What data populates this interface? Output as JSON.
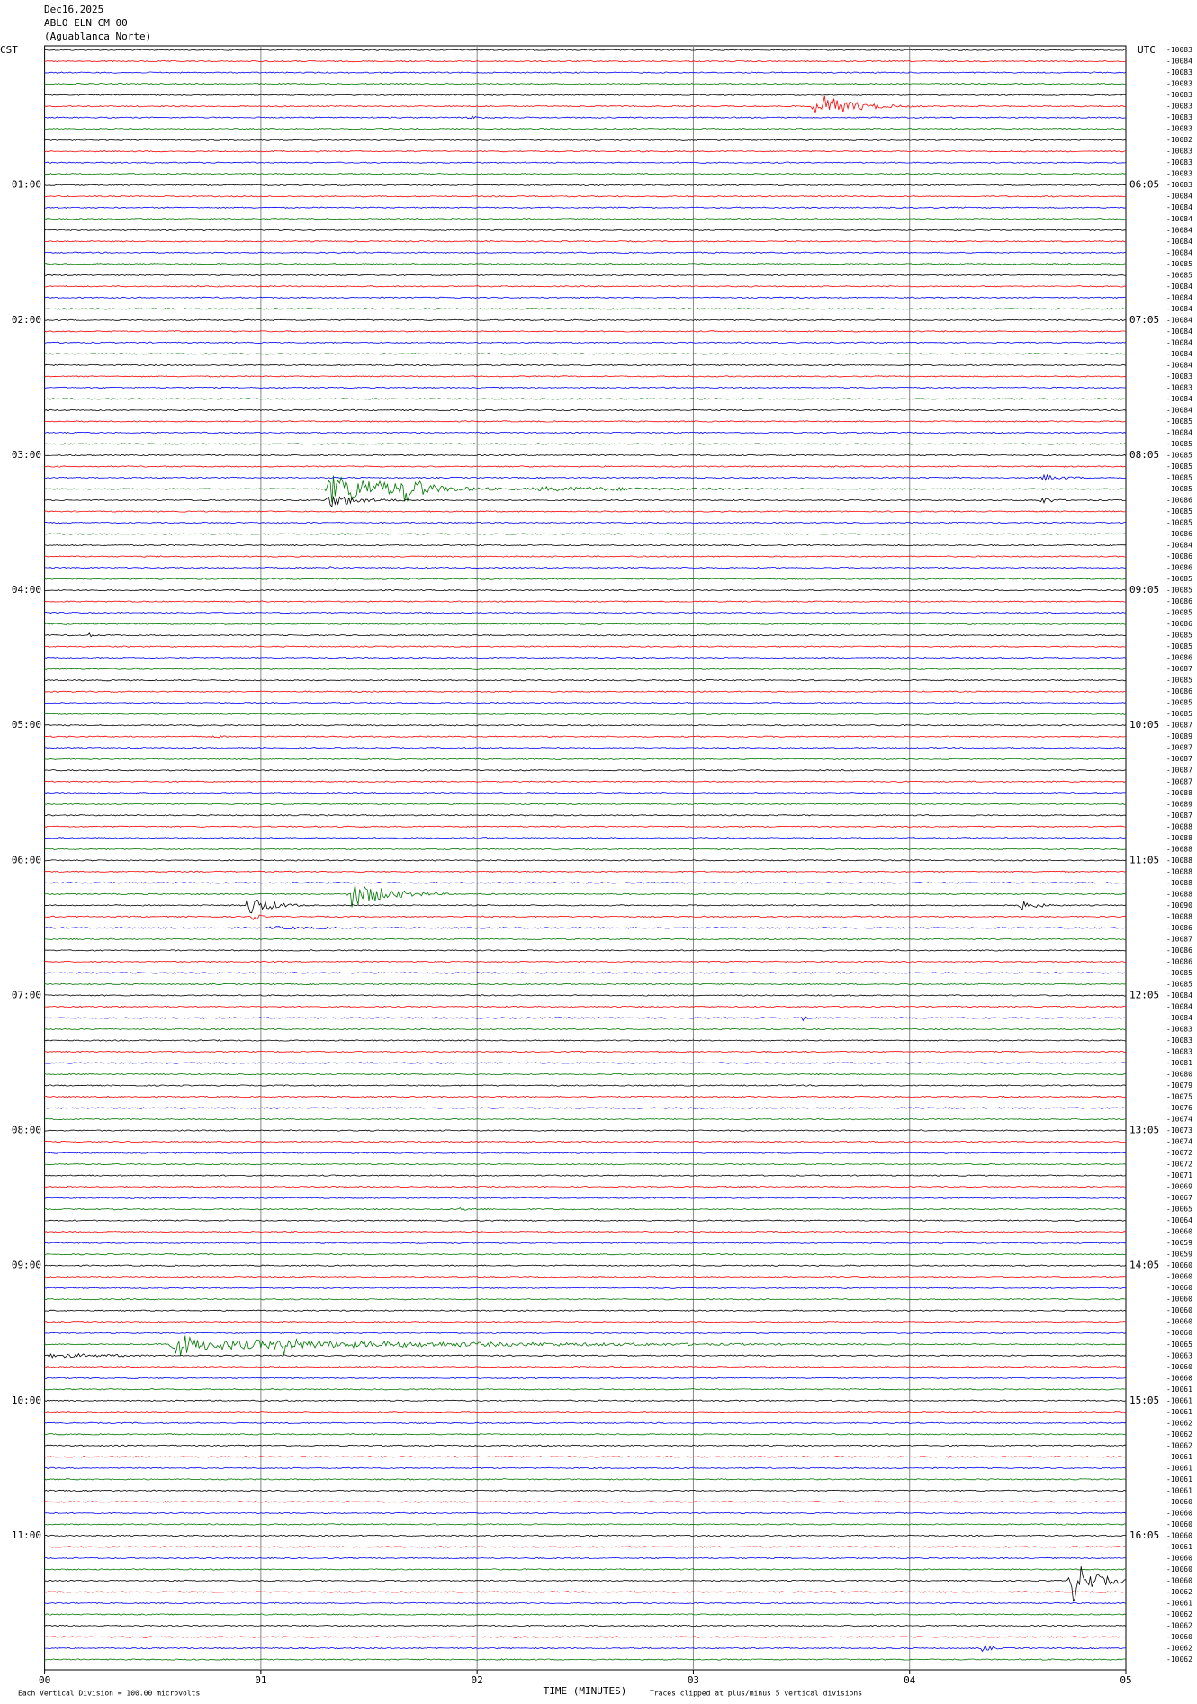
{
  "header": {
    "date": "Dec16,2025",
    "station": "ABLO ELN CM 00",
    "location": "(Aguablanca Norte)",
    "left_zone": "CST",
    "right_zone": "UTC"
  },
  "left_hour_labels": [
    "01:00",
    "02:00",
    "03:00",
    "04:00",
    "05:00",
    "06:00",
    "07:00",
    "08:00",
    "09:00",
    "10:00",
    "11:00"
  ],
  "right_hour_labels": [
    "06:05",
    "07:05",
    "08:05",
    "09:05",
    "10:05",
    "11:05",
    "12:05",
    "13:05",
    "14:05",
    "15:05",
    "16:05"
  ],
  "trace_labels": [
    "-10083",
    "-10084",
    "-10083",
    "-10083",
    "-10083",
    "-10083",
    "-10083",
    "-10083",
    "-10082",
    "-10083",
    "-10083",
    "-10083",
    "-10083",
    "-10084",
    "-10084",
    "-10084",
    "-10084",
    "-10084",
    "-10084",
    "-10085",
    "-10085",
    "-10084",
    "-10084",
    "-10084",
    "-10084",
    "-10084",
    "-10084",
    "-10084",
    "-10084",
    "-10083",
    "-10083",
    "-10084",
    "-10084",
    "-10085",
    "-10084",
    "-10085",
    "-10085",
    "-10085",
    "-10085",
    "-10085",
    "-10086",
    "-10085",
    "-10085",
    "-10086",
    "-10084",
    "-10086",
    "-10086",
    "-10085",
    "-10085",
    "-10086",
    "-10085",
    "-10086",
    "-10085",
    "-10085",
    "-10086",
    "-10087",
    "-10085",
    "-10086",
    "-10085",
    "-10085",
    "-10087",
    "-10089",
    "-10087",
    "-10087",
    "-10087",
    "-10087",
    "-10088",
    "-10089",
    "-10087",
    "-10088",
    "-10088",
    "-10088",
    "-10088",
    "-10088",
    "-10088",
    "-10088",
    "-10090",
    "-10088",
    "-10086",
    "-10087",
    "-10086",
    "-10086",
    "-10085",
    "-10085",
    "-10084",
    "-10084",
    "-10084",
    "-10083",
    "-10083",
    "-10083",
    "-10081",
    "-10080",
    "-10079",
    "-10075",
    "-10076",
    "-10074",
    "-10073",
    "-10074",
    "-10072",
    "-10072",
    "-10071",
    "-10069",
    "-10067",
    "-10065",
    "-10064",
    "-10060",
    "-10059",
    "-10059",
    "-10060",
    "-10060",
    "-10060",
    "-10060",
    "-10060",
    "-10060",
    "-10060",
    "-10065",
    "-10063",
    "-10060",
    "-10060",
    "-10061",
    "-10061",
    "-10061",
    "-10062",
    "-10062",
    "-10062",
    "-10061",
    "-10061",
    "-10061",
    "-10061",
    "-10060",
    "-10060",
    "-10060",
    "-10060",
    "-10061",
    "-10060",
    "-10060",
    "-10060",
    "-10062",
    "-10061",
    "-10062",
    "-10062",
    "-10060",
    "-10062",
    "-10062"
  ],
  "x_axis": {
    "ticks": [
      "00",
      "01",
      "02",
      "03",
      "04",
      "05"
    ],
    "title": "TIME (MINUTES)"
  },
  "footer": {
    "scale_note": "Each Vertical Division =  100.00 microvolts",
    "clip_note": "Traces clipped at plus/minus 5 vertical divisions"
  }
}
